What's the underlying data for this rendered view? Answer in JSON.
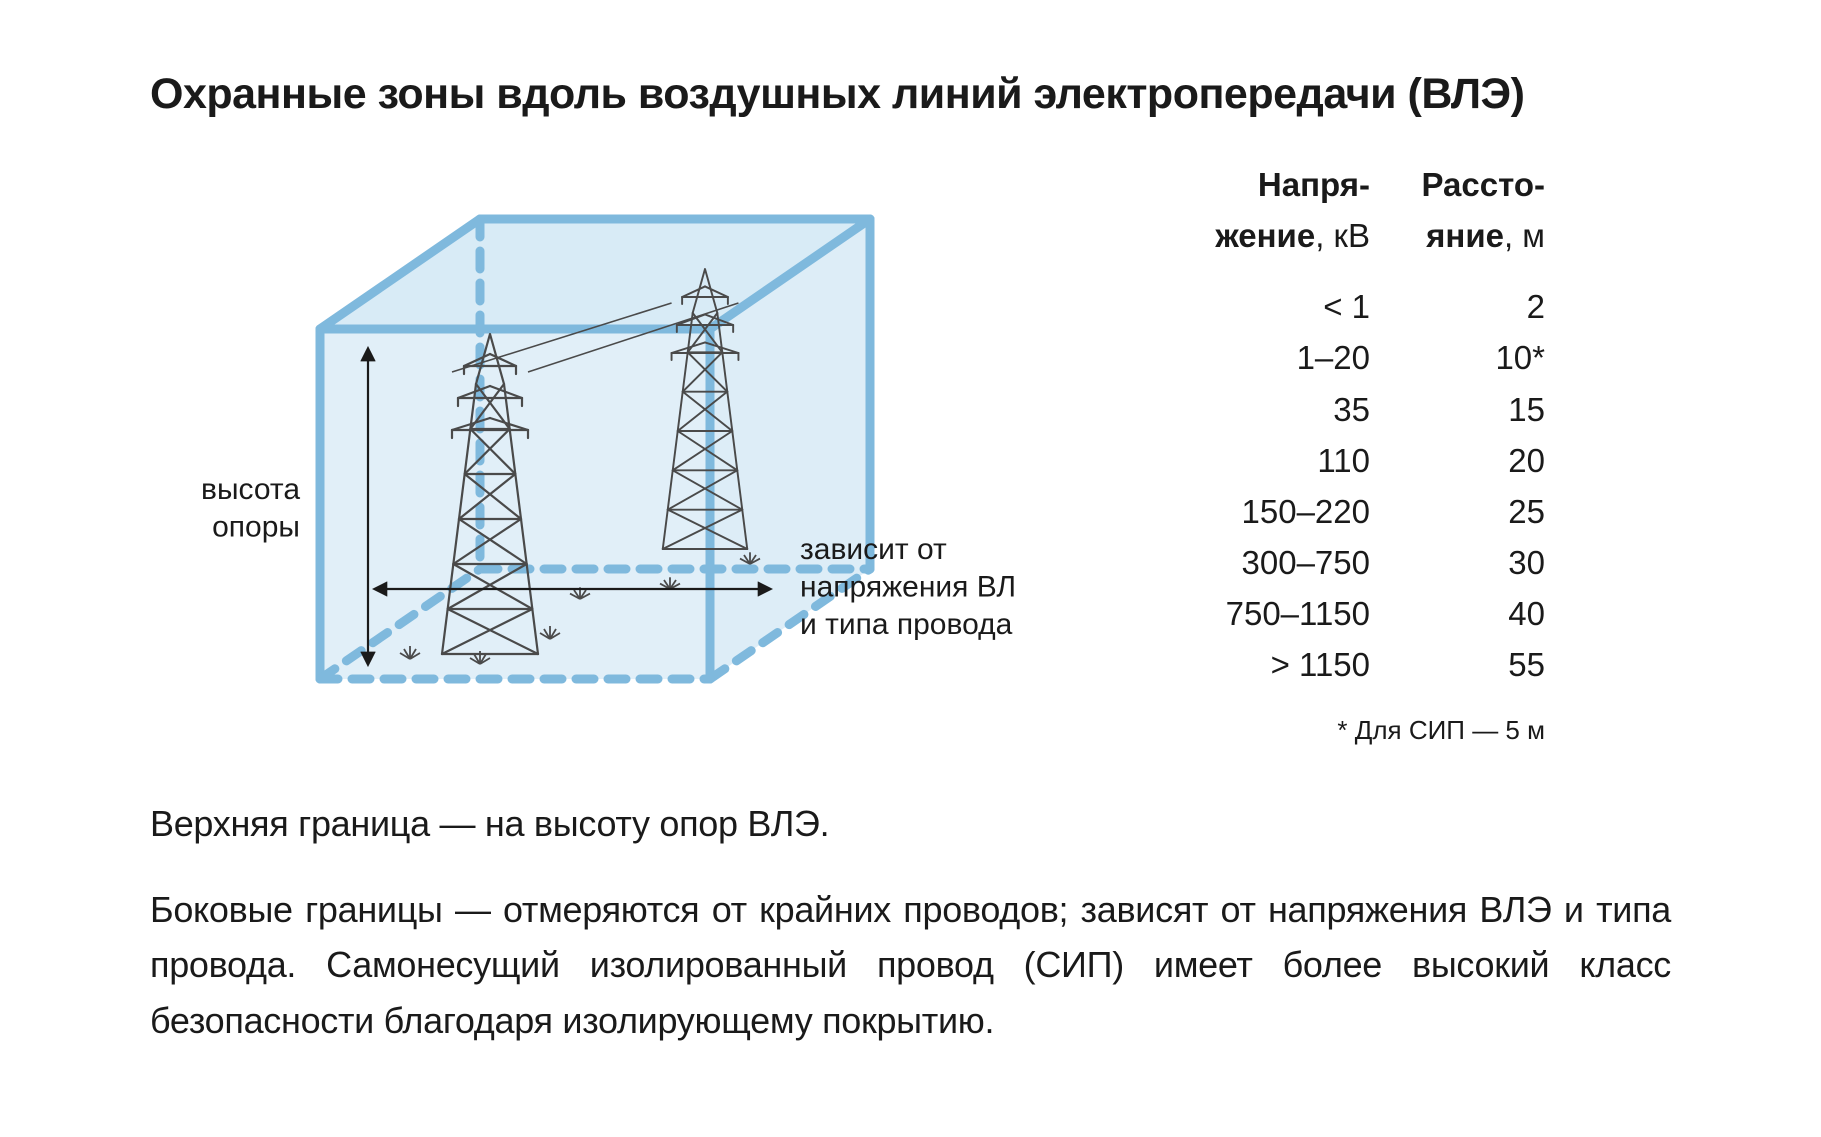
{
  "title": "Охранные зоны вдоль воздушных линий электропередачи (ВЛЭ)",
  "diagram": {
    "type": "infographic",
    "box_fill": "#d1e7f4",
    "box_stroke": "#7fb9dd",
    "box_stroke_width": 9,
    "box_dash": "18 14",
    "tower_color": "#4a4a4a",
    "tower_stroke_width": 2.2,
    "wire_color": "#4a4a4a",
    "arrow_color": "#1a1a1a",
    "grass_color": "#4a4a4a",
    "label_height": "высота\nопоры",
    "label_width": "зависит от\nнапряжения ВЛ\nи типа провода",
    "label_font_size": 30,
    "label_color": "#1a1a1a"
  },
  "table": {
    "header_voltage_bold": "Напря-",
    "header_voltage_rest1": "жение",
    "header_voltage_rest2": ", кВ",
    "header_distance_bold": "Рассто-",
    "header_distance_rest1": "яние",
    "header_distance_rest2": ", м",
    "rows": [
      {
        "v": "< 1",
        "d": "2"
      },
      {
        "v": "1–20",
        "d": "10*"
      },
      {
        "v": "35",
        "d": "15"
      },
      {
        "v": "110",
        "d": "20"
      },
      {
        "v": "150–220",
        "d": "25"
      },
      {
        "v": "300–750",
        "d": "30"
      },
      {
        "v": "750–1150",
        "d": "40"
      },
      {
        "v": "> 1150",
        "d": "55"
      }
    ],
    "footnote": "* Для СИП — 5 м",
    "cell_font_size": 33,
    "col_voltage_width": 220,
    "col_distance_width": 175,
    "text_align": "right"
  },
  "paragraphs": {
    "p1": "Верхняя граница — на высоту опор ВЛЭ.",
    "p2": "Боковые границы — отмеряются от крайних проводов; зависят от напряжения ВЛЭ и типа провода. Самонесущий изолированный провод (СИП) имеет более высокий класс безопасности благодаря изолирующему покрытию."
  },
  "colors": {
    "background": "#ffffff",
    "text": "#1a1a1a"
  },
  "font_family": "Helvetica Neue, Helvetica, Arial, sans-serif"
}
